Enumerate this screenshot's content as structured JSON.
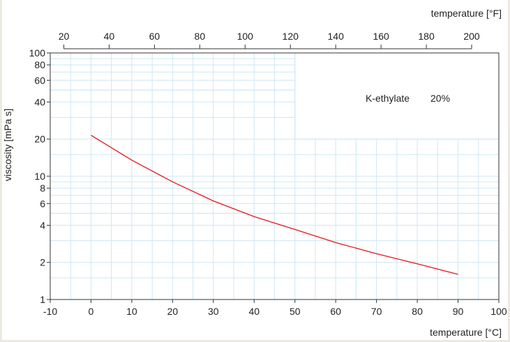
{
  "chart_data": {
    "type": "line",
    "title": "",
    "xlabel": "temperature [°C]",
    "ylabel": "viscosity [mPa s]",
    "x2label": "temperature [°F]",
    "xlim": [
      -10,
      100
    ],
    "ylim": [
      1,
      100
    ],
    "yscale": "log",
    "grid": true,
    "x_ticks": [
      -10,
      0,
      10,
      20,
      30,
      40,
      50,
      60,
      70,
      80,
      90,
      100
    ],
    "y_ticks": [
      1,
      2,
      4,
      6,
      8,
      10,
      20,
      40,
      60,
      80,
      100
    ],
    "x2_ticks": [
      20,
      40,
      60,
      80,
      100,
      120,
      140,
      160,
      180,
      200
    ],
    "annotation": {
      "label": "K-ethylate",
      "value": "20%"
    },
    "line_color": "#e8141c",
    "grid_color": "#cfe6f4",
    "series": [
      {
        "x": [
          0,
          10,
          20,
          30,
          40,
          50,
          60,
          70,
          80,
          90
        ],
        "y": [
          21.5,
          13.5,
          9.0,
          6.3,
          4.7,
          3.7,
          2.9,
          2.35,
          1.95,
          1.6
        ]
      }
    ]
  }
}
